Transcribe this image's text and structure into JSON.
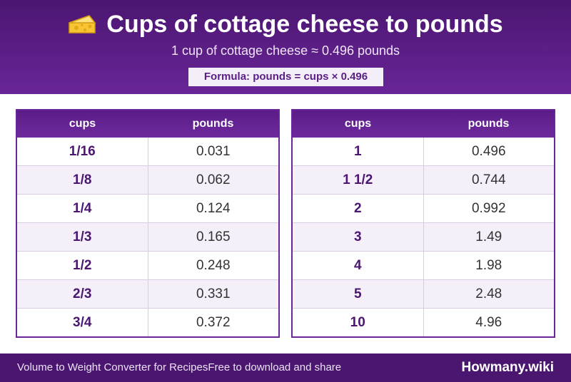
{
  "header": {
    "title": "Cups of cottage cheese to pounds",
    "title_icon": "cheese-icon",
    "subtitle": "1 cup of cottage cheese ≈ 0.496 pounds",
    "formula": "Formula: pounds = cups × 0.496"
  },
  "tables": [
    {
      "headers": {
        "cups": "cups",
        "pounds": "pounds"
      },
      "rows": [
        {
          "cups": "1/16",
          "pounds": "0.031"
        },
        {
          "cups": "1/8",
          "pounds": "0.062"
        },
        {
          "cups": "1/4",
          "pounds": "0.124"
        },
        {
          "cups": "1/3",
          "pounds": "0.165"
        },
        {
          "cups": "1/2",
          "pounds": "0.248"
        },
        {
          "cups": "2/3",
          "pounds": "0.331"
        },
        {
          "cups": "3/4",
          "pounds": "0.372"
        }
      ]
    },
    {
      "headers": {
        "cups": "cups",
        "pounds": "pounds"
      },
      "rows": [
        {
          "cups": "1",
          "pounds": "0.496"
        },
        {
          "cups": "1 1/2",
          "pounds": "0.744"
        },
        {
          "cups": "2",
          "pounds": "0.992"
        },
        {
          "cups": "3",
          "pounds": "1.49"
        },
        {
          "cups": "4",
          "pounds": "1.98"
        },
        {
          "cups": "5",
          "pounds": "2.48"
        },
        {
          "cups": "10",
          "pounds": "4.96"
        }
      ]
    }
  ],
  "footer": {
    "left_text_1": "Volume to Weight Converter for Recipes",
    "left_text_2": "Free to download and share",
    "brand": "Howmany.wiki"
  },
  "colors": {
    "header_bg": "#4a1670",
    "accent": "#6a2598",
    "row_alt": "#f4eff9"
  }
}
